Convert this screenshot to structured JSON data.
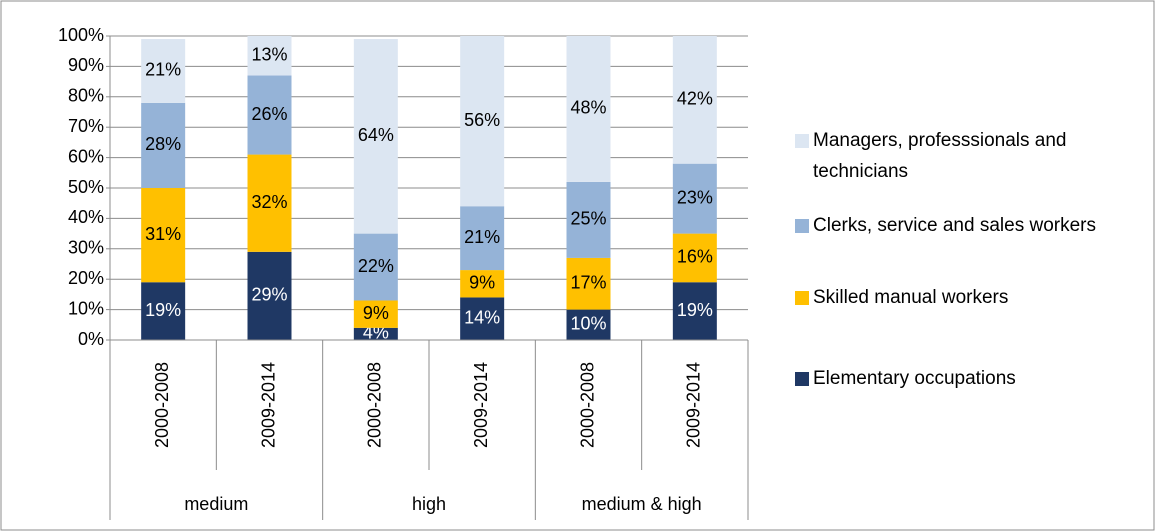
{
  "chart_data": {
    "type": "stacked_bar",
    "categories": [
      "2000-2008",
      "2009-2014",
      "2000-2008",
      "2009-2014",
      "2000-2008",
      "2009-2014"
    ],
    "category_groups": [
      "medium",
      "high",
      "medium & high"
    ],
    "ylim": [
      0,
      100
    ],
    "yticks": [
      {
        "value": 0,
        "label": "0%"
      },
      {
        "value": 10,
        "label": "10%"
      },
      {
        "value": 20,
        "label": "20%"
      },
      {
        "value": 30,
        "label": "30%"
      },
      {
        "value": 40,
        "label": "40%"
      },
      {
        "value": 50,
        "label": "50%"
      },
      {
        "value": 60,
        "label": "60%"
      },
      {
        "value": 70,
        "label": "70%"
      },
      {
        "value": 80,
        "label": "80%"
      },
      {
        "value": 90,
        "label": "90%"
      },
      {
        "value": 100,
        "label": "100%"
      }
    ],
    "grid": true,
    "legend": "right",
    "series": [
      {
        "name": "Elementary occupations",
        "color": "#1f3864",
        "label_color": "#ffffff",
        "values": [
          19,
          29,
          4,
          14,
          10,
          19
        ],
        "value_labels": [
          "19%",
          "29%",
          "4%",
          "14%",
          "10%",
          "19%"
        ]
      },
      {
        "name": "Skilled manual workers",
        "color": "#ffc000",
        "label_color": "#000000",
        "values": [
          31,
          32,
          9,
          9,
          17,
          16
        ],
        "value_labels": [
          "31%",
          "32%",
          "9%",
          "9%",
          "17%",
          "16%"
        ]
      },
      {
        "name": "Clerks, service and sales workers",
        "color": "#95b3d7",
        "label_color": "#000000",
        "values": [
          28,
          26,
          22,
          21,
          25,
          23
        ],
        "value_labels": [
          "28%",
          "26%",
          "22%",
          "21%",
          "25%",
          "23%"
        ]
      },
      {
        "name": "Managers, professsionals and technicians",
        "color": "#dce6f2",
        "label_color": "#000000",
        "values": [
          21,
          13,
          64,
          56,
          48,
          42
        ],
        "value_labels": [
          "21%",
          "13%",
          "64%",
          "56%",
          "48%",
          "42%"
        ]
      }
    ]
  }
}
